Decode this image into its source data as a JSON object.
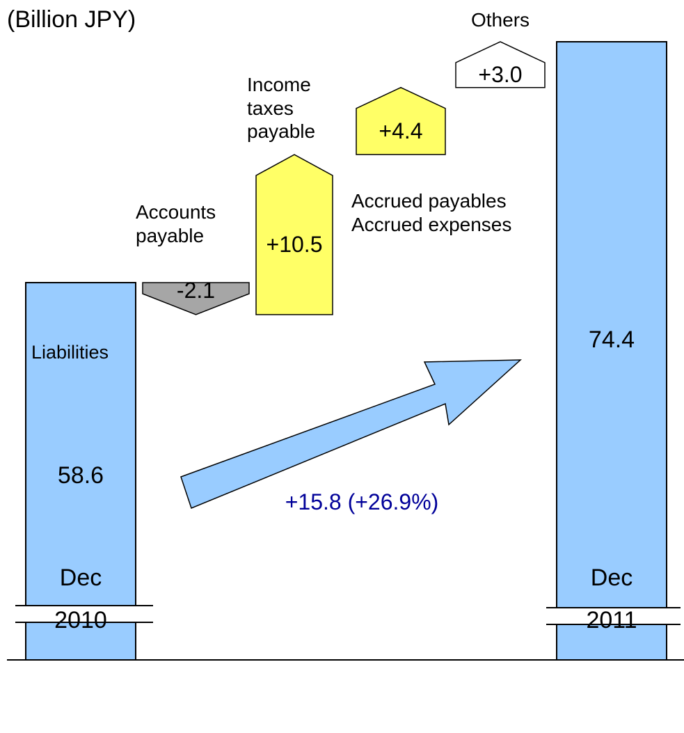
{
  "chart_data": {
    "type": "waterfall",
    "unit": "(Billion JPY)",
    "categories": [
      "Dec\n2010",
      "Dec\n2011"
    ],
    "bar_label": "Liabilities",
    "totals": [
      58.6,
      74.4
    ],
    "color": "#99ccff",
    "changes": [
      {
        "name": "Accounts\npayable",
        "value": -2.1,
        "value_label": "-2.1",
        "color": "#a6a6a6"
      },
      {
        "name": "Income\ntaxes\npayable",
        "value": 10.5,
        "value_label": "+10.5",
        "color": "#ffff66"
      },
      {
        "name": "Accrued payables\nAccrued expenses",
        "value": 4.4,
        "value_label": "+4.4",
        "color": "#ffff66"
      },
      {
        "name": "Others",
        "value": 3.0,
        "value_label": "+3.0",
        "color": "#ffffff"
      }
    ],
    "annotation": "+15.8 (+26.9%)",
    "annotation_color": "#000099"
  }
}
